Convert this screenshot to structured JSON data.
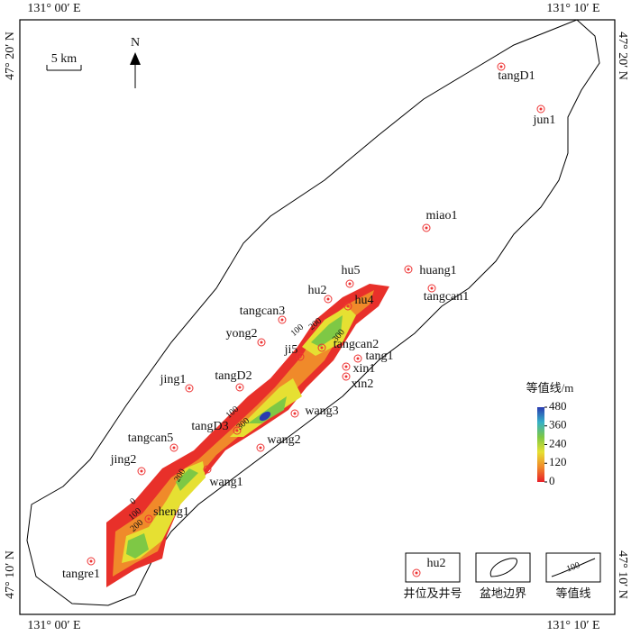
{
  "coords": {
    "top_left": "131° 00′ E",
    "top_right": "131° 10′ E",
    "bottom_left": "131° 00′ E",
    "bottom_right": "131° 10′ E",
    "left_top": "47° 20′ N",
    "left_bottom": "47° 10′ N",
    "right_top": "47° 20′ N",
    "right_bottom": "47° 10′ N"
  },
  "scale_bar": "5 km",
  "north": "N",
  "wells": [
    "tangD1",
    "jun1",
    "miao1",
    "hu5",
    "huang1",
    "hu2",
    "hu4",
    "tangcan1",
    "tangcan3",
    "yong2",
    "tangcan2",
    "ji5",
    "tang1",
    "xin1",
    "xin2",
    "jing1",
    "tangD2",
    "wang3",
    "tangD3",
    "wang2",
    "tangcan5",
    "jing2",
    "wang1",
    "sheng1",
    "tangre1"
  ],
  "contour_labels": [
    0,
    100,
    200,
    200,
    100,
    300,
    100,
    200,
    300
  ],
  "colorbar": {
    "title": "等值线/m",
    "lim": [
      0,
      480
    ],
    "ticks": [
      480,
      360,
      240,
      120,
      0
    ]
  },
  "legend": {
    "sample_well": "hu2",
    "well": "井位及井号",
    "boundary": "盆地边界",
    "sample_contour": 100,
    "contour": "等值线"
  }
}
